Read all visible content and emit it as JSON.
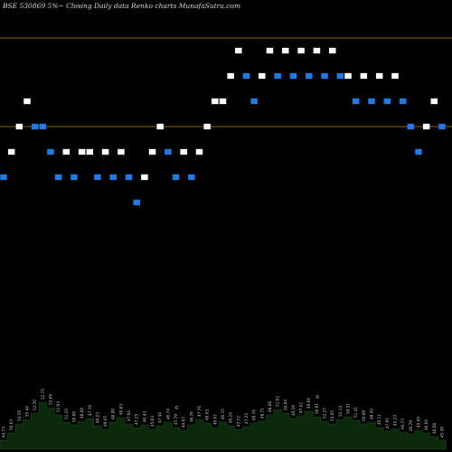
{
  "chart_data": {
    "type": "renko",
    "title": "BSE 530869 5%~   Closing Daily data  Renko  charts MunafaSutra.com",
    "colors": {
      "background": "#000000",
      "up_brick": "#ffffff",
      "down_brick": "#1e7ae6",
      "reference_line": "#b8860b",
      "volume_area": "#0b2a0b",
      "volume_label": "#c8c8c8"
    },
    "levels": {
      "min": 43.2,
      "max": 48.4
    },
    "reference_lines": [
      47.8,
      46.4
    ],
    "bricks": [
      {
        "dir": "down",
        "level": 45.6
      },
      {
        "dir": "up",
        "level": 46.0
      },
      {
        "dir": "up",
        "level": 46.4
      },
      {
        "dir": "up",
        "level": 46.8
      },
      {
        "dir": "down",
        "level": 46.4
      },
      {
        "dir": "down",
        "level": 46.4
      },
      {
        "dir": "down",
        "level": 46.0
      },
      {
        "dir": "down",
        "level": 45.6
      },
      {
        "dir": "up",
        "level": 46.0
      },
      {
        "dir": "down",
        "level": 45.6
      },
      {
        "dir": "up",
        "level": 46.0
      },
      {
        "dir": "up",
        "level": 46.0
      },
      {
        "dir": "down",
        "level": 45.6
      },
      {
        "dir": "up",
        "level": 46.0
      },
      {
        "dir": "down",
        "level": 45.6
      },
      {
        "dir": "up",
        "level": 46.0
      },
      {
        "dir": "down",
        "level": 45.6
      },
      {
        "dir": "down",
        "level": 45.2
      },
      {
        "dir": "up",
        "level": 45.6
      },
      {
        "dir": "up",
        "level": 46.0
      },
      {
        "dir": "up",
        "level": 46.4
      },
      {
        "dir": "down",
        "level": 46.0
      },
      {
        "dir": "down",
        "level": 45.6
      },
      {
        "dir": "up",
        "level": 46.0
      },
      {
        "dir": "down",
        "level": 45.6
      },
      {
        "dir": "up",
        "level": 46.0
      },
      {
        "dir": "up",
        "level": 46.4
      },
      {
        "dir": "up",
        "level": 46.8
      },
      {
        "dir": "up",
        "level": 46.8
      },
      {
        "dir": "up",
        "level": 47.2
      },
      {
        "dir": "up",
        "level": 47.6
      },
      {
        "dir": "down",
        "level": 47.2
      },
      {
        "dir": "down",
        "level": 46.8
      },
      {
        "dir": "up",
        "level": 47.2
      },
      {
        "dir": "up",
        "level": 47.6
      },
      {
        "dir": "down",
        "level": 47.2
      },
      {
        "dir": "up",
        "level": 47.6
      },
      {
        "dir": "down",
        "level": 47.2
      },
      {
        "dir": "up",
        "level": 47.6
      },
      {
        "dir": "down",
        "level": 47.2
      },
      {
        "dir": "up",
        "level": 47.6
      },
      {
        "dir": "down",
        "level": 47.2
      },
      {
        "dir": "up",
        "level": 47.6
      },
      {
        "dir": "down",
        "level": 47.2
      },
      {
        "dir": "up",
        "level": 47.2
      },
      {
        "dir": "down",
        "level": 46.8
      },
      {
        "dir": "up",
        "level": 47.2
      },
      {
        "dir": "down",
        "level": 46.8
      },
      {
        "dir": "up",
        "level": 47.2
      },
      {
        "dir": "down",
        "level": 46.8
      },
      {
        "dir": "up",
        "level": 47.2
      },
      {
        "dir": "down",
        "level": 46.8
      },
      {
        "dir": "down",
        "level": 46.4
      },
      {
        "dir": "down",
        "level": 46.0
      },
      {
        "dir": "up",
        "level": 46.4
      },
      {
        "dir": "up",
        "level": 46.8
      },
      {
        "dir": "down",
        "level": 46.4
      }
    ],
    "volume": {
      "heights": [
        10,
        18,
        28,
        33,
        40,
        52,
        46,
        38,
        30,
        27,
        31,
        34,
        26,
        22,
        30,
        35,
        28,
        24,
        27,
        22,
        26,
        30,
        24,
        21,
        27,
        33,
        29,
        24,
        30,
        26,
        22,
        25,
        29,
        31,
        38,
        44,
        40,
        34,
        37,
        42,
        36,
        31,
        28,
        33,
        36,
        32,
        28,
        30,
        24,
        20,
        23,
        19,
        17,
        21,
        18,
        14,
        10
      ],
      "labels": [
        "44.73",
        "50.63",
        "54.56",
        "55.44",
        "52.70",
        "52.75",
        "53.69",
        "51.93",
        "51.23",
        "50.06",
        "48.00",
        "47.70",
        "46.23",
        "49.65",
        "48.00",
        "46.83",
        "47.64",
        "47.25",
        "46.43",
        "45.03",
        "47.34",
        "46.74",
        "45.79",
        "44.67",
        "46.76",
        "47.76",
        "48.63",
        "46.67",
        "46.15",
        "46.24",
        "47.72",
        "47.25",
        "49.76",
        "48.71",
        "48.08",
        "51.62",
        "50.04",
        "49.19",
        "47.42",
        "49.66",
        "50.61",
        "52.27",
        "53.05",
        "52.14",
        "50.51",
        "51.41",
        "50.09",
        "48.45",
        "46.11",
        "47.95",
        "45.23",
        "46.73",
        "46.79",
        "45.69",
        "46.04",
        "46.08",
        "45.30"
      ],
      "markers": [
        {
          "index": 22,
          "text": "©"
        },
        {
          "index": 40,
          "text": "©"
        }
      ]
    }
  }
}
